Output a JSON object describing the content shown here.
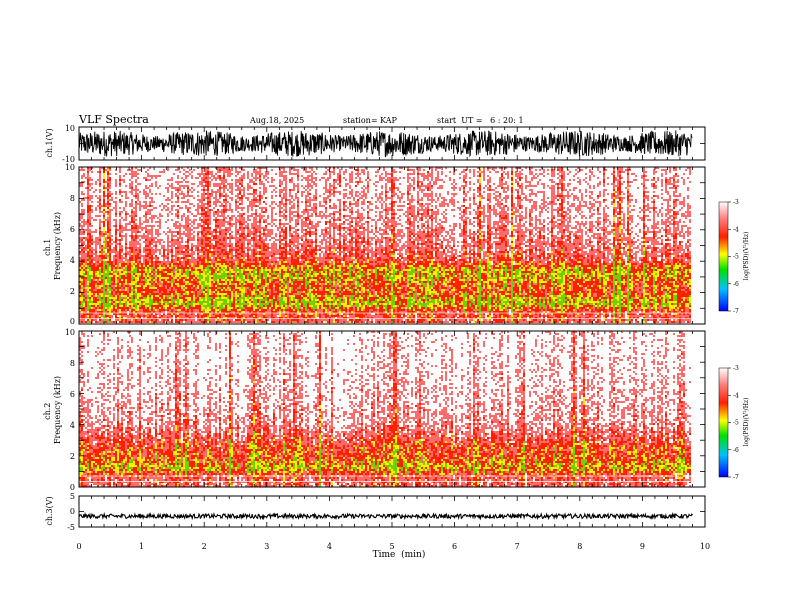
{
  "header": {
    "title": "VLF Spectra",
    "date": "Aug.18, 2025",
    "station": "station= KAP",
    "start_ut": "start  UT =   6 : 20: 1"
  },
  "colors": {
    "waveform": "#000000",
    "spec_background": "#ffffff",
    "spec_low": "#ff6a6a",
    "spec_mid": "#ff2000",
    "spec_high": "#ffee00",
    "spec_peak": "#70d000"
  },
  "chart_data": [
    {
      "type": "line",
      "id": "ch1-waveform",
      "ylabel": "ch.1(V)",
      "ylim": [
        -10,
        10
      ],
      "yticks": [
        "10",
        "-10"
      ],
      "xlim": [
        0,
        10
      ],
      "x_extent_min": [
        0,
        9.8
      ],
      "amplitude_range": [
        -8,
        8
      ]
    },
    {
      "type": "heatmap",
      "id": "ch1-spectrogram",
      "ylabel": "ch.1\nFrequency  (kHz)",
      "ylim": [
        0,
        10
      ],
      "yticks": [
        "0",
        "2",
        "4",
        "6",
        "8",
        "10"
      ],
      "xlim": [
        0,
        10
      ],
      "x_extent_min": [
        0,
        9.8
      ],
      "intensity_profile": [
        {
          "f_khz": 0.2,
          "level": 0.55
        },
        {
          "f_khz": 0.7,
          "level": 0.6
        },
        {
          "f_khz": 1.2,
          "level": 0.95
        },
        {
          "f_khz": 1.6,
          "level": 0.85
        },
        {
          "f_khz": 2.0,
          "level": 0.7
        },
        {
          "f_khz": 2.5,
          "level": 0.75
        },
        {
          "f_khz": 3.0,
          "level": 0.88
        },
        {
          "f_khz": 3.4,
          "level": 0.85
        },
        {
          "f_khz": 4.0,
          "level": 0.55
        },
        {
          "f_khz": 5.0,
          "level": 0.42
        },
        {
          "f_khz": 6.5,
          "level": 0.32
        },
        {
          "f_khz": 8.0,
          "level": 0.28
        },
        {
          "f_khz": 10.0,
          "level": 0.25
        }
      ]
    },
    {
      "type": "heatmap",
      "id": "ch2-spectrogram",
      "ylabel": "ch.2\nFrequency  (kHz)",
      "ylim": [
        0,
        10
      ],
      "yticks": [
        "0",
        "2",
        "4",
        "6",
        "8",
        "10"
      ],
      "xlim": [
        0,
        10
      ],
      "x_extent_min": [
        0,
        9.8
      ],
      "intensity_profile": [
        {
          "f_khz": 0.2,
          "level": 0.5
        },
        {
          "f_khz": 0.7,
          "level": 0.55
        },
        {
          "f_khz": 1.2,
          "level": 0.92
        },
        {
          "f_khz": 1.6,
          "level": 0.8
        },
        {
          "f_khz": 2.0,
          "level": 0.7
        },
        {
          "f_khz": 2.5,
          "level": 0.68
        },
        {
          "f_khz": 3.0,
          "level": 0.55
        },
        {
          "f_khz": 4.0,
          "level": 0.36
        },
        {
          "f_khz": 5.0,
          "level": 0.3
        },
        {
          "f_khz": 6.5,
          "level": 0.24
        },
        {
          "f_khz": 8.0,
          "level": 0.2
        },
        {
          "f_khz": 10.0,
          "level": 0.17
        }
      ]
    },
    {
      "type": "line",
      "id": "ch3-waveform",
      "ylabel": "ch.3(V)",
      "ylim": [
        -5,
        5
      ],
      "yticks": [
        "5",
        "0",
        "-5"
      ],
      "xlim": [
        0,
        10
      ],
      "x_extent_min": [
        0,
        9.8
      ],
      "amplitude_range": [
        -0.7,
        0.7
      ],
      "offset": -1.5
    },
    {
      "type": "colorbar",
      "id": "colorbars",
      "label": "log(PSD)(V²/Hz)",
      "range": [
        -7,
        -3
      ],
      "ticks": [
        "-3",
        "-4",
        "-5",
        "-6",
        "-7"
      ]
    }
  ],
  "x_axis": {
    "label": "Time  (min)",
    "ticks": [
      "0",
      "1",
      "2",
      "3",
      "4",
      "5",
      "6",
      "7",
      "8",
      "9",
      "10"
    ]
  }
}
